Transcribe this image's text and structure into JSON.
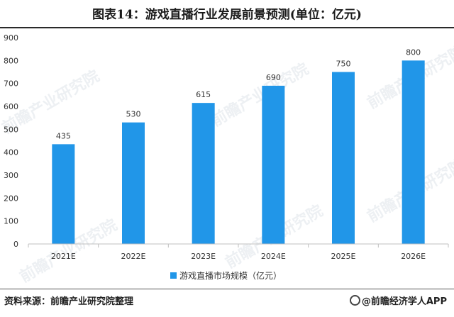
{
  "title": "图表14：游戏直播行业发展前景预测(单位：亿元)",
  "source_label": "资料来源：前瞻产业研究院整理",
  "credit_label": "@前瞻经济学人APP",
  "watermark": "前瞻产业研究院",
  "colors": {
    "bar": "#2196e8",
    "axis": "#bfbfbf",
    "text": "#333333"
  },
  "chart_data": {
    "type": "bar",
    "title": "图表14：游戏直播行业发展前景预测(单位：亿元)",
    "categories": [
      "2021E",
      "2022E",
      "2023E",
      "2024E",
      "2025E",
      "2026E"
    ],
    "series": [
      {
        "name": "游戏直播市场规模（亿元）",
        "values": [
          435,
          530,
          615,
          690,
          750,
          800
        ]
      }
    ],
    "yticks": [
      0,
      100,
      200,
      300,
      400,
      500,
      600,
      700,
      800,
      900
    ],
    "ylim": [
      0,
      900
    ],
    "grid": false,
    "legend_position": "bottom-center",
    "data_labels": true
  }
}
